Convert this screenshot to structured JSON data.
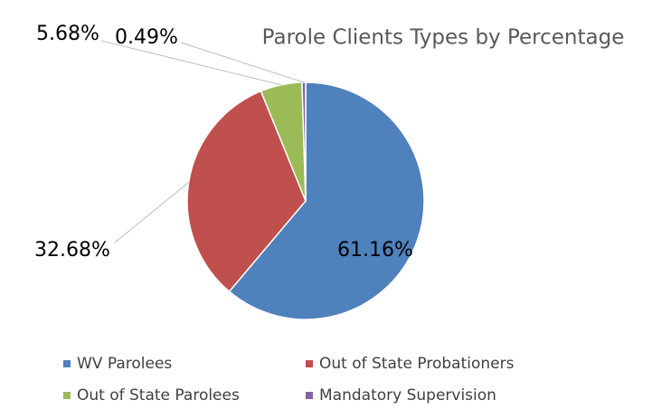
{
  "chart_data": {
    "type": "pie",
    "title": "Parole Clients Types by Percentage",
    "categories": [
      "WV Parolees",
      "Out of State Probationers",
      "Out of State Parolees",
      "Mandatory Supervision"
    ],
    "values": [
      61.16,
      32.68,
      5.68,
      0.49
    ],
    "value_labels": [
      "61.16%",
      "32.68%",
      "5.68%",
      "0.49%"
    ],
    "colors": [
      "#4f81bd",
      "#c0504d",
      "#9bbb59",
      "#8064a2"
    ],
    "legend": "bottom"
  }
}
